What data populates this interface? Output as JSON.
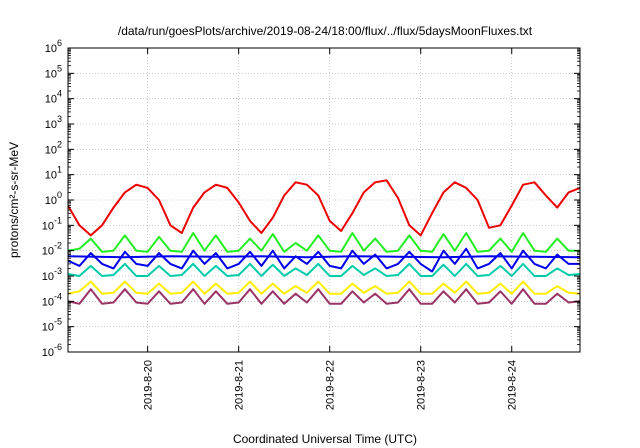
{
  "chart_data": {
    "type": "line",
    "title": "/data/run/goesPlots/archive/2019-08-24/18:00/flux/../flux/5daysMoonFluxes.txt",
    "xlabel": "Coordinated Universal Time (UTC)",
    "ylabel": "protons/cm²-s-sr-MeV",
    "y_scale": "log",
    "ylim": [
      1e-06,
      1000000
    ],
    "y_ticks": [
      {
        "exp": -6,
        "base": "10",
        "sup": "-6"
      },
      {
        "exp": -5,
        "base": "10",
        "sup": "-5"
      },
      {
        "exp": -4,
        "base": "10",
        "sup": "-4"
      },
      {
        "exp": -3,
        "base": "10",
        "sup": "-3"
      },
      {
        "exp": -2,
        "base": "10",
        "sup": "-2"
      },
      {
        "exp": -1,
        "base": "10",
        "sup": "-1"
      },
      {
        "exp": 0,
        "base": "10",
        "sup": "0"
      },
      {
        "exp": 1,
        "base": "10",
        "sup": "1"
      },
      {
        "exp": 2,
        "base": "10",
        "sup": "2"
      },
      {
        "exp": 3,
        "base": "10",
        "sup": "3"
      },
      {
        "exp": 4,
        "base": "10",
        "sup": "4"
      },
      {
        "exp": 5,
        "base": "10",
        "sup": "5"
      },
      {
        "exp": 6,
        "base": "10",
        "sup": "6"
      }
    ],
    "xlim": [
      "2019-08-19T03:00",
      "2019-08-24T18:00"
    ],
    "x_ticks": [
      {
        "date": "2019-08-20T00:00",
        "label": "2019-8-20"
      },
      {
        "date": "2019-08-21T00:00",
        "label": "2019-8-21"
      },
      {
        "date": "2019-08-22T00:00",
        "label": "2019-8-22"
      },
      {
        "date": "2019-08-23T00:00",
        "label": "2019-8-23"
      },
      {
        "date": "2019-08-24T00:00",
        "label": "2019-8-24"
      }
    ],
    "grid": true,
    "series": [
      {
        "color": "#ee0000",
        "x": [
          "2019-08-19T03:00",
          "2019-08-19T06:00",
          "2019-08-19T09:00",
          "2019-08-19T12:00",
          "2019-08-19T15:00",
          "2019-08-19T18:00",
          "2019-08-19T21:00",
          "2019-08-20T00:00",
          "2019-08-20T03:00",
          "2019-08-20T06:00",
          "2019-08-20T09:00",
          "2019-08-20T12:00",
          "2019-08-20T15:00",
          "2019-08-20T18:00",
          "2019-08-20T21:00",
          "2019-08-21T00:00",
          "2019-08-21T03:00",
          "2019-08-21T06:00",
          "2019-08-21T09:00",
          "2019-08-21T12:00",
          "2019-08-21T15:00",
          "2019-08-21T18:00",
          "2019-08-21T21:00",
          "2019-08-22T00:00",
          "2019-08-22T03:00",
          "2019-08-22T06:00",
          "2019-08-22T09:00",
          "2019-08-22T12:00",
          "2019-08-22T15:00",
          "2019-08-22T18:00",
          "2019-08-22T21:00",
          "2019-08-23T00:00",
          "2019-08-23T03:00",
          "2019-08-23T06:00",
          "2019-08-23T09:00",
          "2019-08-23T12:00",
          "2019-08-23T15:00",
          "2019-08-23T18:00",
          "2019-08-23T21:00",
          "2019-08-24T00:00",
          "2019-08-24T03:00",
          "2019-08-24T06:00",
          "2019-08-24T09:00",
          "2019-08-24T12:00",
          "2019-08-24T15:00",
          "2019-08-24T18:00"
        ],
        "y": [
          0.6,
          0.1,
          0.04,
          0.1,
          0.5,
          2,
          4,
          3,
          1,
          0.1,
          0.05,
          0.5,
          2,
          4,
          3,
          0.8,
          0.15,
          0.05,
          0.2,
          1.5,
          5,
          4,
          1.5,
          0.15,
          0.06,
          0.3,
          2,
          5,
          6,
          1.2,
          0.1,
          0.04,
          0.3,
          2,
          5,
          3,
          1,
          0.08,
          0.1,
          0.6,
          4,
          5,
          1.5,
          0.5,
          2,
          3
        ]
      },
      {
        "color": "#22ee22",
        "x": [
          "2019-08-19T03:00",
          "2019-08-19T06:00",
          "2019-08-19T09:00",
          "2019-08-19T12:00",
          "2019-08-19T15:00",
          "2019-08-19T18:00",
          "2019-08-19T21:00",
          "2019-08-20T00:00",
          "2019-08-20T03:00",
          "2019-08-20T06:00",
          "2019-08-20T09:00",
          "2019-08-20T12:00",
          "2019-08-20T15:00",
          "2019-08-20T18:00",
          "2019-08-20T21:00",
          "2019-08-21T00:00",
          "2019-08-21T03:00",
          "2019-08-21T06:00",
          "2019-08-21T09:00",
          "2019-08-21T12:00",
          "2019-08-21T15:00",
          "2019-08-21T18:00",
          "2019-08-21T21:00",
          "2019-08-22T00:00",
          "2019-08-22T03:00",
          "2019-08-22T06:00",
          "2019-08-22T09:00",
          "2019-08-22T12:00",
          "2019-08-22T15:00",
          "2019-08-22T18:00",
          "2019-08-22T21:00",
          "2019-08-23T00:00",
          "2019-08-23T03:00",
          "2019-08-23T06:00",
          "2019-08-23T09:00",
          "2019-08-23T12:00",
          "2019-08-23T15:00",
          "2019-08-23T18:00",
          "2019-08-23T21:00",
          "2019-08-24T00:00",
          "2019-08-24T03:00",
          "2019-08-24T06:00",
          "2019-08-24T09:00",
          "2019-08-24T12:00",
          "2019-08-24T15:00",
          "2019-08-24T18:00"
        ],
        "y": [
          0.01,
          0.012,
          0.03,
          0.009,
          0.01,
          0.04,
          0.01,
          0.009,
          0.035,
          0.01,
          0.009,
          0.05,
          0.01,
          0.04,
          0.009,
          0.01,
          0.03,
          0.01,
          0.045,
          0.009,
          0.02,
          0.01,
          0.04,
          0.01,
          0.009,
          0.05,
          0.01,
          0.03,
          0.009,
          0.01,
          0.04,
          0.01,
          0.009,
          0.045,
          0.01,
          0.05,
          0.009,
          0.01,
          0.03,
          0.009,
          0.05,
          0.01,
          0.009,
          0.03,
          0.01,
          0.01
        ]
      },
      {
        "color": "#0000ee",
        "x": [
          "2019-08-19T03:00",
          "2019-08-19T06:00",
          "2019-08-19T09:00",
          "2019-08-19T12:00",
          "2019-08-19T15:00",
          "2019-08-19T18:00",
          "2019-08-19T21:00",
          "2019-08-20T00:00",
          "2019-08-20T03:00",
          "2019-08-20T06:00",
          "2019-08-20T09:00",
          "2019-08-20T12:00",
          "2019-08-20T15:00",
          "2019-08-20T18:00",
          "2019-08-20T21:00",
          "2019-08-21T00:00",
          "2019-08-21T03:00",
          "2019-08-21T06:00",
          "2019-08-21T09:00",
          "2019-08-21T12:00",
          "2019-08-21T15:00",
          "2019-08-21T18:00",
          "2019-08-21T21:00",
          "2019-08-22T00:00",
          "2019-08-22T03:00",
          "2019-08-22T06:00",
          "2019-08-22T09:00",
          "2019-08-22T12:00",
          "2019-08-22T15:00",
          "2019-08-22T18:00",
          "2019-08-22T21:00",
          "2019-08-23T00:00",
          "2019-08-23T03:00",
          "2019-08-23T06:00",
          "2019-08-23T09:00",
          "2019-08-23T12:00",
          "2019-08-23T15:00",
          "2019-08-23T18:00",
          "2019-08-23T21:00",
          "2019-08-24T00:00",
          "2019-08-24T03:00",
          "2019-08-24T06:00",
          "2019-08-24T09:00",
          "2019-08-24T12:00",
          "2019-08-24T15:00",
          "2019-08-24T18:00"
        ],
        "y": [
          0.004,
          0.0025,
          0.008,
          0.003,
          0.002,
          0.009,
          0.003,
          0.0025,
          0.008,
          0.003,
          0.002,
          0.01,
          0.003,
          0.008,
          0.002,
          0.003,
          0.009,
          0.0025,
          0.01,
          0.002,
          0.006,
          0.003,
          0.009,
          0.0025,
          0.002,
          0.01,
          0.003,
          0.007,
          0.002,
          0.003,
          0.009,
          0.003,
          0.0015,
          0.01,
          0.003,
          0.012,
          0.002,
          0.003,
          0.008,
          0.002,
          0.01,
          0.003,
          0.002,
          0.007,
          0.003,
          0.003
        ]
      },
      {
        "color": "#0000ee",
        "x": [
          "2019-08-19T03:00",
          "2019-08-19T18:00",
          "2019-08-20T06:00",
          "2019-08-20T18:00",
          "2019-08-21T06:00",
          "2019-08-21T18:00",
          "2019-08-22T06:00",
          "2019-08-22T18:00",
          "2019-08-23T06:00",
          "2019-08-23T18:00",
          "2019-08-24T06:00",
          "2019-08-24T18:00"
        ],
        "y": [
          0.006,
          0.0055,
          0.006,
          0.0058,
          0.006,
          0.0055,
          0.006,
          0.0058,
          0.0055,
          0.006,
          0.0058,
          0.0055
        ]
      },
      {
        "color": "#00ccaa",
        "x": [
          "2019-08-19T03:00",
          "2019-08-19T06:00",
          "2019-08-19T09:00",
          "2019-08-19T12:00",
          "2019-08-19T15:00",
          "2019-08-19T18:00",
          "2019-08-19T21:00",
          "2019-08-20T00:00",
          "2019-08-20T03:00",
          "2019-08-20T06:00",
          "2019-08-20T09:00",
          "2019-08-20T12:00",
          "2019-08-20T15:00",
          "2019-08-20T18:00",
          "2019-08-20T21:00",
          "2019-08-21T00:00",
          "2019-08-21T03:00",
          "2019-08-21T06:00",
          "2019-08-21T09:00",
          "2019-08-21T12:00",
          "2019-08-21T15:00",
          "2019-08-21T18:00",
          "2019-08-21T21:00",
          "2019-08-22T00:00",
          "2019-08-22T03:00",
          "2019-08-22T06:00",
          "2019-08-22T09:00",
          "2019-08-22T12:00",
          "2019-08-22T15:00",
          "2019-08-22T18:00",
          "2019-08-22T21:00",
          "2019-08-23T00:00",
          "2019-08-23T03:00",
          "2019-08-23T06:00",
          "2019-08-23T09:00",
          "2019-08-23T12:00",
          "2019-08-23T15:00",
          "2019-08-23T18:00",
          "2019-08-23T21:00",
          "2019-08-24T00:00",
          "2019-08-24T03:00",
          "2019-08-24T06:00",
          "2019-08-24T09:00",
          "2019-08-24T12:00",
          "2019-08-24T15:00",
          "2019-08-24T18:00"
        ],
        "y": [
          0.0012,
          0.001,
          0.0025,
          0.001,
          0.0011,
          0.003,
          0.001,
          0.001,
          0.0025,
          0.001,
          0.0011,
          0.003,
          0.001,
          0.0025,
          0.001,
          0.0011,
          0.003,
          0.001,
          0.0028,
          0.001,
          0.002,
          0.0011,
          0.003,
          0.001,
          0.001,
          0.0025,
          0.0011,
          0.002,
          0.001,
          0.0011,
          0.003,
          0.001,
          0.001,
          0.0028,
          0.001,
          0.003,
          0.001,
          0.0011,
          0.0025,
          0.001,
          0.003,
          0.001,
          0.001,
          0.002,
          0.0011,
          0.0012
        ]
      },
      {
        "color": "#ffee00",
        "x": [
          "2019-08-19T03:00",
          "2019-08-19T06:00",
          "2019-08-19T09:00",
          "2019-08-19T12:00",
          "2019-08-19T15:00",
          "2019-08-19T18:00",
          "2019-08-19T21:00",
          "2019-08-20T00:00",
          "2019-08-20T03:00",
          "2019-08-20T06:00",
          "2019-08-20T09:00",
          "2019-08-20T12:00",
          "2019-08-20T15:00",
          "2019-08-20T18:00",
          "2019-08-20T21:00",
          "2019-08-21T00:00",
          "2019-08-21T03:00",
          "2019-08-21T06:00",
          "2019-08-21T09:00",
          "2019-08-21T12:00",
          "2019-08-21T15:00",
          "2019-08-21T18:00",
          "2019-08-21T21:00",
          "2019-08-22T00:00",
          "2019-08-22T03:00",
          "2019-08-22T06:00",
          "2019-08-22T09:00",
          "2019-08-22T12:00",
          "2019-08-22T15:00",
          "2019-08-22T18:00",
          "2019-08-22T21:00",
          "2019-08-23T00:00",
          "2019-08-23T03:00",
          "2019-08-23T06:00",
          "2019-08-23T09:00",
          "2019-08-23T12:00",
          "2019-08-23T15:00",
          "2019-08-23T18:00",
          "2019-08-23T21:00",
          "2019-08-24T00:00",
          "2019-08-24T03:00",
          "2019-08-24T06:00",
          "2019-08-24T09:00",
          "2019-08-24T12:00",
          "2019-08-24T15:00",
          "2019-08-24T18:00"
        ],
        "y": [
          0.0002,
          0.00025,
          0.0006,
          0.0002,
          0.00022,
          0.0006,
          0.00022,
          0.0002,
          0.0005,
          0.0002,
          0.00022,
          0.0006,
          0.0002,
          0.0005,
          0.0002,
          0.00022,
          0.0006,
          0.0002,
          0.0005,
          0.0002,
          0.0004,
          0.00022,
          0.0006,
          0.0002,
          0.0002,
          0.0005,
          0.00022,
          0.0004,
          0.0002,
          0.00022,
          0.0006,
          0.0002,
          0.0002,
          0.0005,
          0.00022,
          0.0006,
          0.0002,
          0.00022,
          0.0005,
          0.0002,
          0.0006,
          0.0002,
          0.0002,
          0.0004,
          0.00022,
          0.0002
        ]
      },
      {
        "color": "#993366",
        "x": [
          "2019-08-19T03:00",
          "2019-08-19T06:00",
          "2019-08-19T09:00",
          "2019-08-19T12:00",
          "2019-08-19T15:00",
          "2019-08-19T18:00",
          "2019-08-19T21:00",
          "2019-08-20T00:00",
          "2019-08-20T03:00",
          "2019-08-20T06:00",
          "2019-08-20T09:00",
          "2019-08-20T12:00",
          "2019-08-20T15:00",
          "2019-08-20T18:00",
          "2019-08-20T21:00",
          "2019-08-21T00:00",
          "2019-08-21T03:00",
          "2019-08-21T06:00",
          "2019-08-21T09:00",
          "2019-08-21T12:00",
          "2019-08-21T15:00",
          "2019-08-21T18:00",
          "2019-08-21T21:00",
          "2019-08-22T00:00",
          "2019-08-22T03:00",
          "2019-08-22T06:00",
          "2019-08-22T09:00",
          "2019-08-22T12:00",
          "2019-08-22T15:00",
          "2019-08-22T18:00",
          "2019-08-22T21:00",
          "2019-08-23T00:00",
          "2019-08-23T03:00",
          "2019-08-23T06:00",
          "2019-08-23T09:00",
          "2019-08-23T12:00",
          "2019-08-23T15:00",
          "2019-08-23T18:00",
          "2019-08-23T21:00",
          "2019-08-24T00:00",
          "2019-08-24T03:00",
          "2019-08-24T06:00",
          "2019-08-24T09:00",
          "2019-08-24T12:00",
          "2019-08-24T15:00",
          "2019-08-24T18:00"
        ],
        "y": [
          0.0001,
          8e-05,
          0.0003,
          8e-05,
          9e-05,
          0.0003,
          9e-05,
          8e-05,
          0.00025,
          8e-05,
          9e-05,
          0.0003,
          8e-05,
          0.00025,
          8e-05,
          9e-05,
          0.0003,
          8e-05,
          0.00025,
          8e-05,
          0.0002,
          9e-05,
          0.0003,
          8e-05,
          8e-05,
          0.00025,
          9e-05,
          0.0002,
          8e-05,
          9e-05,
          0.0003,
          8e-05,
          8e-05,
          0.00025,
          9e-05,
          0.0003,
          8e-05,
          9e-05,
          0.00025,
          8e-05,
          0.0003,
          8e-05,
          8e-05,
          0.0002,
          9e-05,
          0.0001
        ]
      }
    ]
  }
}
